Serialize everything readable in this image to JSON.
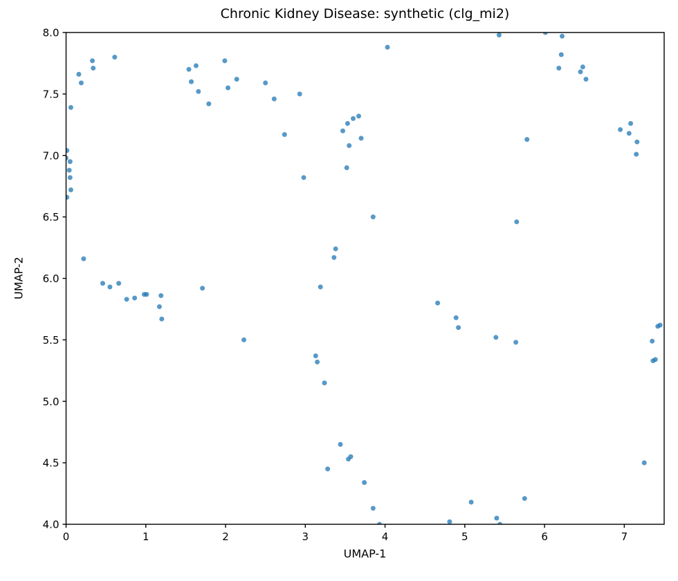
{
  "figure": {
    "title": "Chronic Kidney Disease: synthetic (clg_mi2)",
    "xlabel": "UMAP-1",
    "ylabel": "UMAP-2"
  },
  "chart_data": {
    "type": "scatter",
    "title": "Chronic Kidney Disease: synthetic (clg_mi2)",
    "xlabel": "UMAP-1",
    "ylabel": "UMAP-2",
    "xlim": [
      0,
      7.5
    ],
    "ylim": [
      4.0,
      8.0
    ],
    "xticks": [
      0,
      1,
      2,
      3,
      4,
      5,
      6,
      7
    ],
    "xtick_labels": [
      "0",
      "1",
      "2",
      "3",
      "4",
      "5",
      "6",
      "7"
    ],
    "yticks": [
      4.0,
      4.5,
      5.0,
      5.5,
      6.0,
      6.5,
      7.0,
      7.5,
      8.0
    ],
    "ytick_labels": [
      "4.0",
      "4.5",
      "5.0",
      "5.5",
      "6.0",
      "6.5",
      "7.0",
      "7.5",
      "8.0"
    ],
    "grid": false,
    "legend": null,
    "marker_color": "#1f77b4",
    "marker_opacity": 0.75,
    "marker_radius_px": 3.5,
    "spine_color": "#000000",
    "points": [
      [
        0.33,
        7.77
      ],
      [
        0.34,
        7.71
      ],
      [
        0.61,
        7.8
      ],
      [
        0.16,
        7.66
      ],
      [
        0.19,
        7.59
      ],
      [
        0.06,
        7.39
      ],
      [
        0.01,
        7.04
      ],
      [
        0.0,
        6.98
      ],
      [
        0.05,
        6.95
      ],
      [
        0.04,
        6.88
      ],
      [
        0.05,
        6.82
      ],
      [
        0.06,
        6.72
      ],
      [
        0.01,
        6.66
      ],
      [
        0.22,
        6.16
      ],
      [
        1.99,
        7.77
      ],
      [
        1.63,
        7.73
      ],
      [
        1.54,
        7.7
      ],
      [
        2.14,
        7.62
      ],
      [
        1.57,
        7.6
      ],
      [
        2.03,
        7.55
      ],
      [
        1.66,
        7.52
      ],
      [
        1.79,
        7.42
      ],
      [
        2.5,
        7.59
      ],
      [
        2.93,
        7.5
      ],
      [
        2.61,
        7.46
      ],
      [
        2.74,
        7.17
      ],
      [
        2.98,
        6.82
      ],
      [
        3.67,
        7.32
      ],
      [
        3.6,
        7.3
      ],
      [
        3.53,
        7.26
      ],
      [
        3.47,
        7.2
      ],
      [
        3.7,
        7.14
      ],
      [
        3.55,
        7.08
      ],
      [
        3.52,
        6.9
      ],
      [
        4.03,
        7.88
      ],
      [
        3.85,
        6.5
      ],
      [
        3.38,
        6.24
      ],
      [
        3.36,
        6.17
      ],
      [
        3.19,
        5.93
      ],
      [
        0.46,
        5.96
      ],
      [
        0.55,
        5.93
      ],
      [
        0.66,
        5.96
      ],
      [
        0.76,
        5.83
      ],
      [
        0.86,
        5.84
      ],
      [
        0.98,
        5.87
      ],
      [
        1.01,
        5.87
      ],
      [
        1.19,
        5.86
      ],
      [
        1.17,
        5.77
      ],
      [
        1.2,
        5.67
      ],
      [
        1.71,
        5.92
      ],
      [
        2.23,
        5.5
      ],
      [
        3.13,
        5.37
      ],
      [
        3.15,
        5.32
      ],
      [
        3.24,
        5.15
      ],
      [
        3.44,
        4.65
      ],
      [
        3.54,
        4.53
      ],
      [
        3.57,
        4.55
      ],
      [
        3.28,
        4.45
      ],
      [
        3.74,
        4.34
      ],
      [
        3.85,
        4.13
      ],
      [
        3.93,
        4.0
      ],
      [
        4.81,
        4.02
      ],
      [
        5.08,
        4.18
      ],
      [
        5.75,
        4.21
      ],
      [
        5.4,
        4.05
      ],
      [
        5.44,
        4.0
      ],
      [
        4.66,
        5.8
      ],
      [
        4.89,
        5.68
      ],
      [
        4.92,
        5.6
      ],
      [
        5.39,
        5.52
      ],
      [
        5.64,
        5.48
      ],
      [
        5.65,
        6.46
      ],
      [
        5.43,
        7.98
      ],
      [
        6.01,
        8.0
      ],
      [
        6.22,
        7.97
      ],
      [
        6.21,
        7.82
      ],
      [
        6.18,
        7.71
      ],
      [
        6.48,
        7.72
      ],
      [
        6.45,
        7.68
      ],
      [
        6.52,
        7.62
      ],
      [
        5.78,
        7.13
      ],
      [
        7.08,
        7.26
      ],
      [
        6.95,
        7.21
      ],
      [
        7.06,
        7.18
      ],
      [
        7.16,
        7.11
      ],
      [
        7.15,
        7.01
      ],
      [
        7.42,
        5.61
      ],
      [
        7.45,
        5.62
      ],
      [
        7.35,
        5.49
      ],
      [
        7.36,
        5.33
      ],
      [
        7.39,
        5.34
      ],
      [
        7.25,
        4.5
      ]
    ]
  }
}
